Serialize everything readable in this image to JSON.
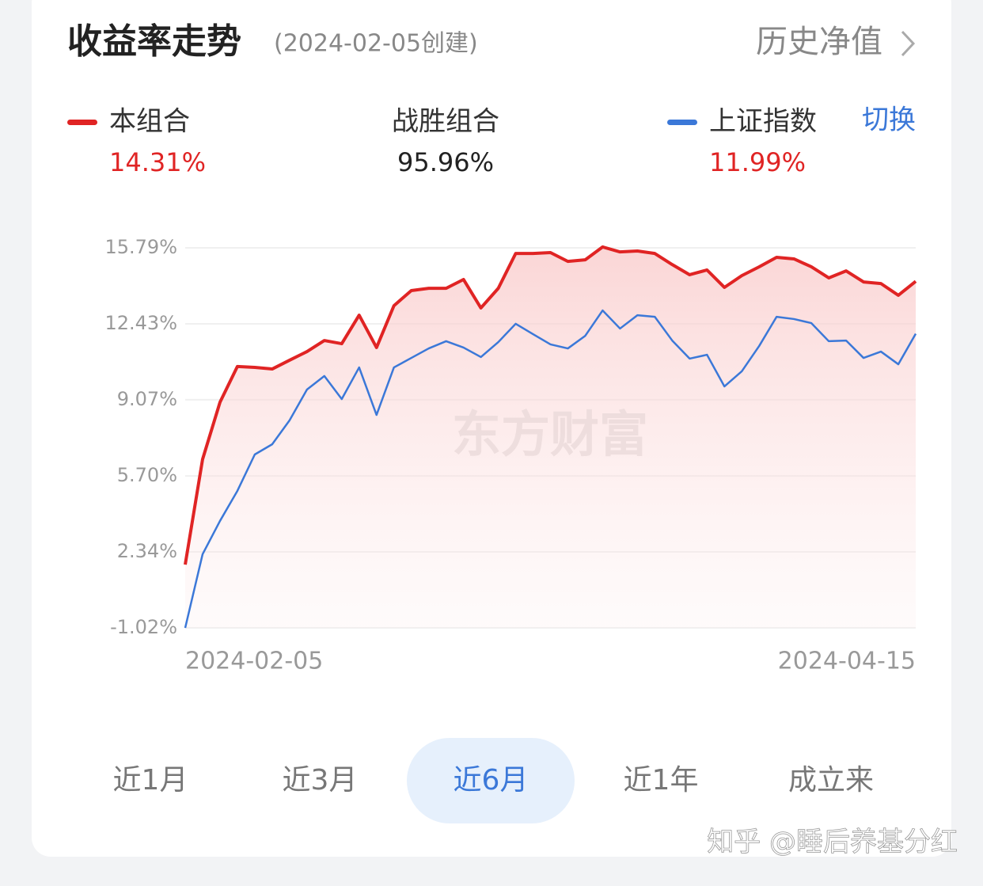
{
  "header": {
    "title": "收益率走势",
    "created": "(2024-02-05创建)",
    "link": "历史净值"
  },
  "summary": {
    "portfolio_value": "14.31%",
    "beat_label": "战胜组合",
    "beat_value": "95.96%",
    "index_value": "11.99%",
    "switch": "切换"
  },
  "watermark": "东方财富",
  "tabs": [
    "近1月",
    "近3月",
    "近6月",
    "近1年",
    "成立来"
  ],
  "active_tab": 2,
  "footer": "知乎 @睡后养基分红",
  "chart_data": {
    "type": "line",
    "categories": [
      "2024-02-05",
      null,
      null,
      null,
      null,
      null,
      null,
      null,
      null,
      null,
      null,
      null,
      null,
      null,
      null,
      null,
      null,
      null,
      null,
      null,
      null,
      null,
      null,
      null,
      null,
      null,
      null,
      null,
      null,
      null,
      null,
      null,
      null,
      null,
      null,
      null,
      null,
      null,
      null,
      null,
      null,
      null,
      "2024-04-15"
    ],
    "series": [
      {
        "name": "本组合",
        "color": "#e02424",
        "values": [
          1.78,
          6.44,
          8.96,
          10.54,
          10.5,
          10.43,
          10.82,
          11.2,
          11.69,
          11.55,
          12.81,
          11.38,
          13.23,
          13.9,
          14.0,
          14.0,
          14.39,
          13.13,
          14.0,
          15.54,
          15.54,
          15.58,
          15.19,
          15.26,
          15.83,
          15.61,
          15.65,
          15.54,
          15.05,
          14.6,
          14.81,
          14.04,
          14.56,
          14.95,
          15.37,
          15.3,
          14.95,
          14.46,
          14.77,
          14.28,
          14.21,
          13.69,
          14.31
        ]
      },
      {
        "name": "上证指数",
        "color": "#3b78d8",
        "values": [
          -1.02,
          2.24,
          3.71,
          5.04,
          6.65,
          7.1,
          8.16,
          9.52,
          10.12,
          9.1,
          10.5,
          8.4,
          10.5,
          10.92,
          11.34,
          11.66,
          11.38,
          10.96,
          11.62,
          12.43,
          11.97,
          11.52,
          11.34,
          11.9,
          13.02,
          12.22,
          12.81,
          12.74,
          11.69,
          10.89,
          11.06,
          9.66,
          10.33,
          11.45,
          12.74,
          12.64,
          12.46,
          11.66,
          11.69,
          10.92,
          11.2,
          10.64,
          11.99
        ]
      }
    ],
    "ylim": [
      -1.02,
      15.79
    ],
    "yticks": [
      {
        "value": -1.02,
        "label": "-1.02%"
      },
      {
        "value": 2.34,
        "label": "2.34%"
      },
      {
        "value": 5.7,
        "label": "5.70%"
      },
      {
        "value": 9.07,
        "label": "9.07%"
      },
      {
        "value": 12.43,
        "label": "12.43%"
      },
      {
        "value": 15.79,
        "label": "15.79%"
      }
    ],
    "grid": true
  }
}
